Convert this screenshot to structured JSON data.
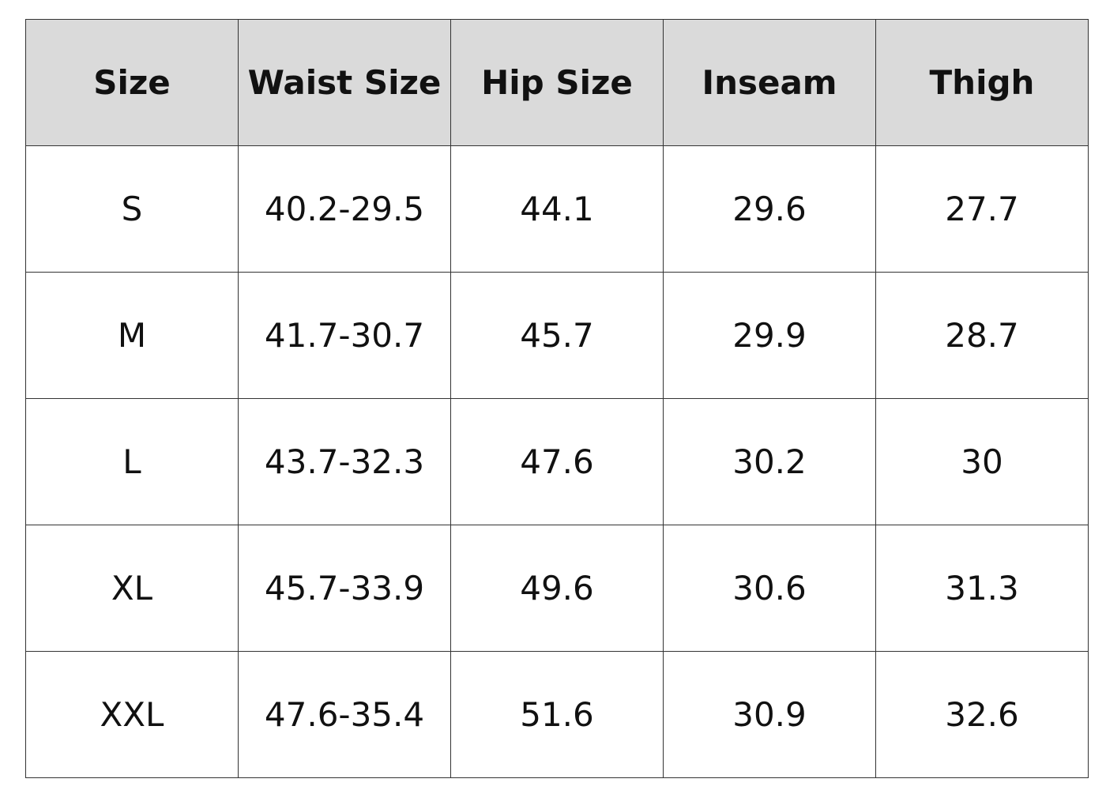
{
  "table": {
    "header": [
      "Size",
      "Waist Size",
      "Hip Size",
      "Inseam",
      "Thigh"
    ],
    "rows": [
      [
        "S",
        "40.2-29.5",
        "44.1",
        "29.6",
        "27.7"
      ],
      [
        "M",
        "41.7-30.7",
        "45.7",
        "29.9",
        "28.7"
      ],
      [
        "L",
        "43.7-32.3",
        "47.6",
        "30.2",
        "30"
      ],
      [
        "XL",
        "45.7-33.9",
        "49.6",
        "30.6",
        "31.3"
      ],
      [
        "XXL",
        "47.6-35.4",
        "51.6",
        "30.9",
        "32.6"
      ]
    ]
  }
}
